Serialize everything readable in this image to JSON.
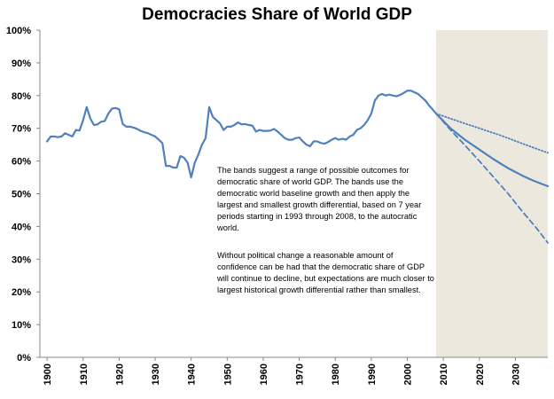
{
  "chart_data": {
    "type": "line",
    "title": "Democracies Share of World GDP",
    "xlabel": "",
    "ylabel": "",
    "xlim": [
      1898,
      2039
    ],
    "ylim": [
      0,
      100
    ],
    "x_ticks": [
      "1900",
      "1910",
      "1920",
      "1930",
      "1940",
      "1950",
      "1960",
      "1970",
      "1980",
      "1990",
      "2000",
      "2010",
      "2020",
      "2030"
    ],
    "y_ticks": [
      "0%",
      "10%",
      "20%",
      "30%",
      "40%",
      "50%",
      "60%",
      "70%",
      "80%",
      "90%",
      "100%"
    ],
    "grid": false,
    "legend": "none",
    "forecast_band": {
      "x_start": 2008,
      "x_end": 2039,
      "color": "#ede8de"
    },
    "series": [
      {
        "style": "solid",
        "color": "#4f81bd",
        "points": [
          [
            1900,
            66
          ],
          [
            1901,
            67.5
          ],
          [
            1902,
            67.5
          ],
          [
            1903,
            67.3
          ],
          [
            1904,
            67.5
          ],
          [
            1905,
            68.5
          ],
          [
            1906,
            68
          ],
          [
            1907,
            67.5
          ],
          [
            1908,
            69.5
          ],
          [
            1909,
            69.3
          ],
          [
            1910,
            72.5
          ],
          [
            1911,
            76.5
          ],
          [
            1912,
            73
          ],
          [
            1913,
            71
          ],
          [
            1914,
            71.2
          ],
          [
            1915,
            72
          ],
          [
            1916,
            72.2
          ],
          [
            1917,
            74.5
          ],
          [
            1918,
            76
          ],
          [
            1919,
            76.2
          ],
          [
            1920,
            75.8
          ],
          [
            1921,
            71.3
          ],
          [
            1922,
            70.5
          ],
          [
            1923,
            70.5
          ],
          [
            1924,
            70.2
          ],
          [
            1925,
            69.8
          ],
          [
            1926,
            69.2
          ],
          [
            1927,
            68.8
          ],
          [
            1928,
            68.5
          ],
          [
            1929,
            68
          ],
          [
            1930,
            67.5
          ],
          [
            1931,
            66.5
          ],
          [
            1932,
            65.5
          ],
          [
            1933,
            58.5
          ],
          [
            1934,
            58.5
          ],
          [
            1935,
            58
          ],
          [
            1936,
            58
          ],
          [
            1937,
            61.5
          ],
          [
            1938,
            61
          ],
          [
            1939,
            59.5
          ],
          [
            1940,
            55
          ],
          [
            1941,
            59.5
          ],
          [
            1942,
            62
          ],
          [
            1943,
            65
          ],
          [
            1944,
            67
          ],
          [
            1945,
            76.5
          ],
          [
            1946,
            73.5
          ],
          [
            1947,
            72.5
          ],
          [
            1948,
            71.5
          ],
          [
            1949,
            69.5
          ],
          [
            1950,
            70.5
          ],
          [
            1951,
            70.5
          ],
          [
            1952,
            71
          ],
          [
            1953,
            71.8
          ],
          [
            1954,
            71.2
          ],
          [
            1955,
            71.3
          ],
          [
            1956,
            71
          ],
          [
            1957,
            70.8
          ],
          [
            1958,
            69
          ],
          [
            1959,
            69.5
          ],
          [
            1960,
            69.2
          ],
          [
            1961,
            69.2
          ],
          [
            1962,
            69.3
          ],
          [
            1963,
            69.8
          ],
          [
            1964,
            69
          ],
          [
            1965,
            68
          ],
          [
            1966,
            67
          ],
          [
            1967,
            66.5
          ],
          [
            1968,
            66.5
          ],
          [
            1969,
            67
          ],
          [
            1970,
            67.2
          ],
          [
            1971,
            66
          ],
          [
            1972,
            65
          ],
          [
            1973,
            64.5
          ],
          [
            1974,
            66
          ],
          [
            1975,
            66
          ],
          [
            1976,
            65.5
          ],
          [
            1977,
            65.3
          ],
          [
            1978,
            65.8
          ],
          [
            1979,
            66.5
          ],
          [
            1980,
            67
          ],
          [
            1981,
            66.5
          ],
          [
            1982,
            66.8
          ],
          [
            1983,
            66.5
          ],
          [
            1984,
            67.5
          ],
          [
            1985,
            68
          ],
          [
            1986,
            69.5
          ],
          [
            1987,
            70
          ],
          [
            1988,
            71
          ],
          [
            1989,
            72.5
          ],
          [
            1990,
            74.5
          ],
          [
            1991,
            78.5
          ],
          [
            1992,
            80
          ],
          [
            1993,
            80.5
          ],
          [
            1994,
            80
          ],
          [
            1995,
            80.3
          ],
          [
            1996,
            80
          ],
          [
            1997,
            79.8
          ],
          [
            1998,
            80.2
          ],
          [
            1999,
            80.8
          ],
          [
            2000,
            81.5
          ],
          [
            2001,
            81.5
          ],
          [
            2002,
            81
          ],
          [
            2003,
            80.5
          ],
          [
            2004,
            79.5
          ],
          [
            2005,
            78.5
          ],
          [
            2006,
            77
          ],
          [
            2007,
            75.8
          ],
          [
            2008,
            74.5
          ],
          [
            2012,
            70
          ],
          [
            2016,
            66.5
          ],
          [
            2020,
            63.5
          ],
          [
            2024,
            60.5
          ],
          [
            2028,
            57.8
          ],
          [
            2032,
            55.5
          ],
          [
            2035,
            54
          ],
          [
            2039,
            52.3
          ]
        ]
      },
      {
        "style": "dotted",
        "color": "#4f81bd",
        "points": [
          [
            2008,
            74.5
          ],
          [
            2014,
            72.2
          ],
          [
            2020,
            70
          ],
          [
            2026,
            67.8
          ],
          [
            2032,
            65.3
          ],
          [
            2039,
            62.5
          ]
        ]
      },
      {
        "style": "dashed",
        "color": "#4f81bd",
        "points": [
          [
            2008,
            74.5
          ],
          [
            2012,
            69.5
          ],
          [
            2016,
            64.8
          ],
          [
            2020,
            60
          ],
          [
            2024,
            55
          ],
          [
            2028,
            50
          ],
          [
            2032,
            44.5
          ],
          [
            2036,
            39.3
          ],
          [
            2039,
            35
          ]
        ]
      }
    ],
    "annotations": [
      "The bands suggest a range of possible outcomes for democratic share of world GDP.  The bands use the democratic world baseline growth and then apply the largest and smallest growth differential, based on 7 year periods starting in 1993 through 2008, to the autocratic world.",
      "Without political change a reasonable amount of confidence can be had that the democratic share of GDP will continue to decline, but expectations are much closer to largest historical growth differential rather than smallest."
    ]
  }
}
